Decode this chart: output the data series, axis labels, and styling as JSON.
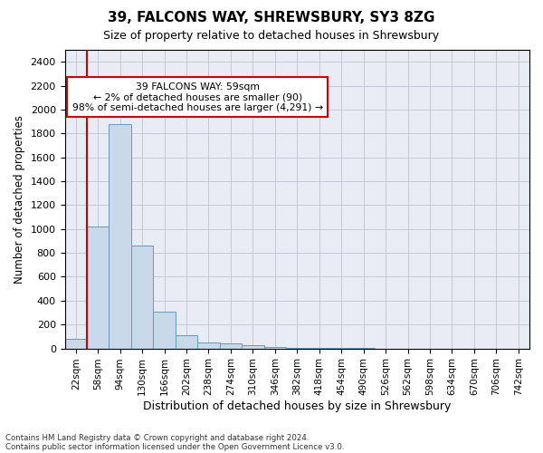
{
  "title1": "39, FALCONS WAY, SHREWSBURY, SY3 8ZG",
  "title2": "Size of property relative to detached houses in Shrewsbury",
  "xlabel": "Distribution of detached houses by size in Shrewsbury",
  "ylabel": "Number of detached properties",
  "footer1": "Contains HM Land Registry data © Crown copyright and database right 2024.",
  "footer2": "Contains public sector information licensed under the Open Government Licence v3.0.",
  "bin_labels": [
    "22sqm",
    "58sqm",
    "94sqm",
    "130sqm",
    "166sqm",
    "202sqm",
    "238sqm",
    "274sqm",
    "310sqm",
    "346sqm",
    "382sqm",
    "418sqm",
    "454sqm",
    "490sqm",
    "526sqm",
    "562sqm",
    "598sqm",
    "634sqm",
    "670sqm",
    "706sqm",
    "742sqm"
  ],
  "bar_values": [
    80,
    1020,
    1880,
    860,
    310,
    110,
    50,
    40,
    25,
    15,
    5,
    3,
    2,
    1,
    0,
    0,
    0,
    0,
    0,
    0,
    0
  ],
  "bar_color": "#c9d9ea",
  "bar_edge_color": "#6699bb",
  "grid_color": "#bbbbcc",
  "bg_color": "#e8ecf5",
  "property_line_color": "#cc0000",
  "property_line_bin": 1,
  "annotation_line1": "39 FALCONS WAY: 59sqm",
  "annotation_line2": "← 2% of detached houses are smaller (90)",
  "annotation_line3": "98% of semi-detached houses are larger (4,291) →",
  "annotation_box_edge_color": "#cc0000",
  "ylim": [
    0,
    2500
  ],
  "yticks": [
    0,
    200,
    400,
    600,
    800,
    1000,
    1200,
    1400,
    1600,
    1800,
    2000,
    2200,
    2400
  ]
}
